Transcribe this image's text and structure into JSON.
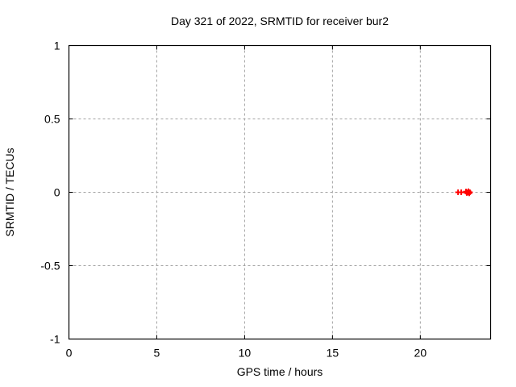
{
  "chart_data": {
    "type": "scatter",
    "title": "Day 321 of 2022, SRMTID for receiver bur2",
    "xlabel": "GPS time / hours",
    "ylabel": "SRMTID / TECUs",
    "xlim": [
      0,
      24
    ],
    "ylim": [
      -1,
      1
    ],
    "xticks": [
      0,
      5,
      10,
      15,
      20
    ],
    "yticks": [
      -1,
      -0.5,
      0,
      0.5,
      1
    ],
    "grid": true,
    "legend": "none",
    "marker": {
      "style": "plus",
      "color": "#ff0000",
      "size": 7
    },
    "series": [
      {
        "name": "SRMTID",
        "points": [
          {
            "x": 22.15,
            "y": 0.0
          },
          {
            "x": 22.33,
            "y": 0.0
          },
          {
            "x": 22.6,
            "y": 0.005
          },
          {
            "x": 22.65,
            "y": -0.005
          },
          {
            "x": 22.7,
            "y": 0.0
          },
          {
            "x": 22.74,
            "y": 0.007
          },
          {
            "x": 22.78,
            "y": -0.007
          },
          {
            "x": 22.82,
            "y": 0.0
          }
        ]
      }
    ],
    "colors": {
      "border": "#000000",
      "grid": "#a3a3a3",
      "text": "#000000",
      "marker": "#ff0000",
      "background": "#ffffff"
    }
  }
}
